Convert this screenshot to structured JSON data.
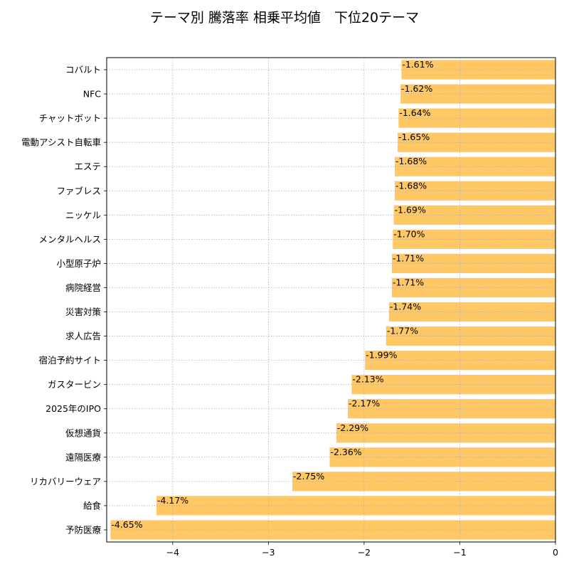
{
  "chart_data": {
    "type": "bar",
    "orientation": "horizontal",
    "title": "テーマ別 騰落率 相乗平均値　下位20テーマ",
    "xlabel": "",
    "ylabel": "",
    "categories": [
      "コバルト",
      "NFC",
      "チャットボット",
      "電動アシスト自転車",
      "エステ",
      "ファブレス",
      "ニッケル",
      "メンタルヘルス",
      "小型原子炉",
      "病院経営",
      "災害対策",
      "求人広告",
      "宿泊予約サイト",
      "ガスタービン",
      "2025年のIPO",
      "仮想通貨",
      "遠隔医療",
      "リカバリーウェア",
      "給食",
      "予防医療"
    ],
    "values": [
      -1.61,
      -1.62,
      -1.64,
      -1.65,
      -1.68,
      -1.68,
      -1.69,
      -1.7,
      -1.71,
      -1.71,
      -1.74,
      -1.77,
      -1.99,
      -2.13,
      -2.17,
      -2.29,
      -2.36,
      -2.75,
      -4.17,
      -4.65
    ],
    "data_labels": [
      "-1.61%",
      "-1.62%",
      "-1.64%",
      "-1.65%",
      "-1.68%",
      "-1.68%",
      "-1.69%",
      "-1.70%",
      "-1.71%",
      "-1.71%",
      "-1.74%",
      "-1.77%",
      "-1.99%",
      "-2.13%",
      "-2.17%",
      "-2.29%",
      "-2.36%",
      "-2.75%",
      "-4.17%",
      "-4.65%"
    ],
    "xlim": [
      -4.69,
      0
    ],
    "xticks": [
      -4,
      -3,
      -2,
      -1,
      0
    ],
    "xtick_labels": [
      "−4",
      "−3",
      "−2",
      "−1",
      "0"
    ],
    "grid": true,
    "bar_color": "#ffc864"
  }
}
